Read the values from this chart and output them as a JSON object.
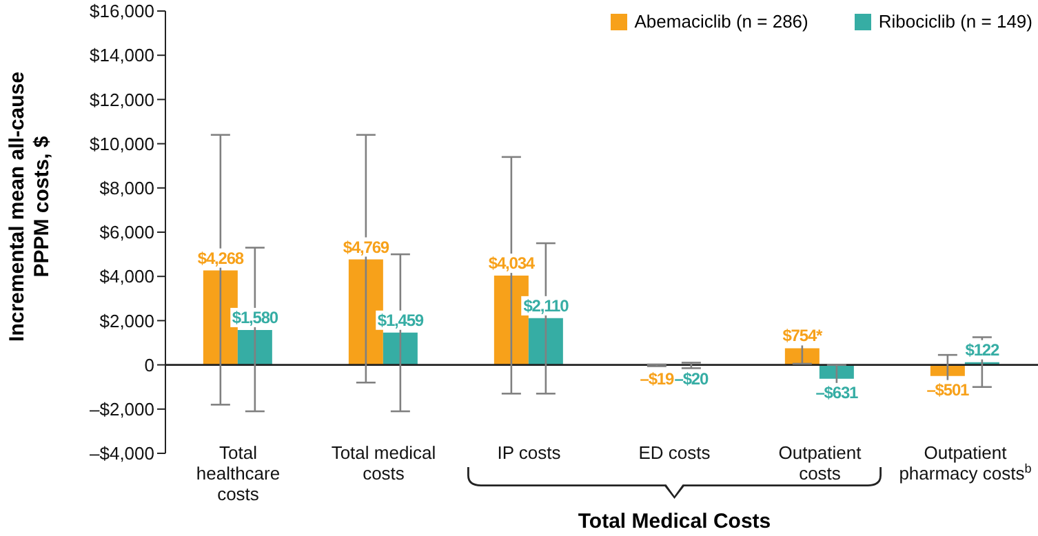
{
  "chart_data": {
    "type": "bar",
    "ylabel": "Incremental mean all-cause PPPM costs, $",
    "categories": [
      "Total healthcare costs",
      "Total medical costs",
      "IP costs",
      "ED costs",
      "Outpatient costs",
      "Outpatient pharmacy costs$^{b}$"
    ],
    "series": [
      {
        "name": "Abemaciclib (n = 286)",
        "color": "#f7a11a",
        "values": [
          4268,
          4769,
          4034,
          -19,
          754,
          -501
        ],
        "value_labels": [
          "$4,268",
          "$4,769",
          "$4,034",
          "–$19",
          "$754*",
          "–$501"
        ],
        "errors": [
          [
            -1800,
            10400
          ],
          [
            -800,
            10400
          ],
          [
            -1300,
            9400
          ],
          [
            -60,
            20
          ],
          [
            50,
            1450
          ],
          [
            -1300,
            450
          ]
        ]
      },
      {
        "name": "Ribociclib (n = 149)",
        "color": "#36ada4",
        "values": [
          1580,
          1459,
          2110,
          -20,
          -631,
          122
        ],
        "value_labels": [
          "$1,580",
          "$1,459",
          "$2,110",
          "–$20",
          "–$631",
          "$122"
        ],
        "errors": [
          [
            -2100,
            5300
          ],
          [
            -2100,
            5000
          ],
          [
            -1300,
            5500
          ],
          [
            -150,
            100
          ],
          [
            -1300,
            0
          ],
          [
            -1000,
            1250
          ]
        ]
      }
    ],
    "ylim": [
      -4000,
      16000
    ],
    "yticks": [
      {
        "value": -4000,
        "label": "–$4,000"
      },
      {
        "value": -2000,
        "label": "–$2,000"
      },
      0,
      {
        "value": 2000,
        "label": "$2,000"
      },
      {
        "value": 4000,
        "label": "$4,000"
      },
      {
        "value": 6000,
        "label": "$6,000"
      },
      {
        "value": 8000,
        "label": "$8,000"
      },
      {
        "value": 10000,
        "label": "$10,000"
      },
      {
        "value": 12000,
        "label": "$12,000"
      },
      {
        "value": 14000,
        "label": "$14,000"
      },
      {
        "value": 16000,
        "label": "$16,000"
      }
    ],
    "annotations": [
      "Total Medical Costs"
    ],
    "ref_lines": [
      {
        "axis": "y",
        "value": 0,
        "color": "#222222"
      }
    ],
    "legend": "top right",
    "grid": false
  }
}
